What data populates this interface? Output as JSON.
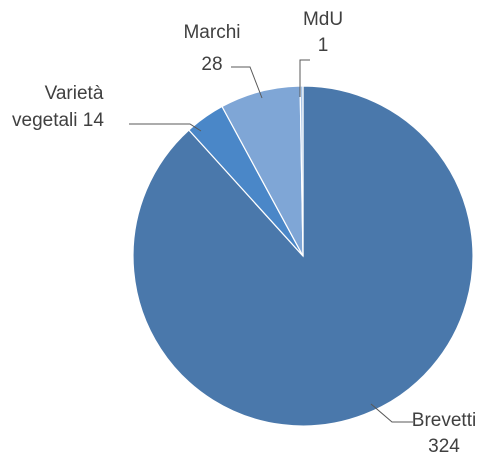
{
  "chart_data": {
    "type": "pie",
    "categories": [
      "Brevetti",
      "Varietà vegetali",
      "Marchi",
      "MdU"
    ],
    "values": [
      324,
      14,
      28,
      1
    ],
    "colors": [
      "#4a78ab",
      "#4a87c8",
      "#7fa6d6",
      "#a8c4e6"
    ],
    "start_angle_deg": 0,
    "direction": "counterclockwise"
  },
  "labels": [
    {
      "name": "Brevetti",
      "value": "324"
    },
    {
      "name": "Varietà",
      "name2": "vegetali",
      "value": "14"
    },
    {
      "name": "Marchi",
      "value": "28"
    },
    {
      "name": "MdU",
      "value": "1"
    }
  ]
}
